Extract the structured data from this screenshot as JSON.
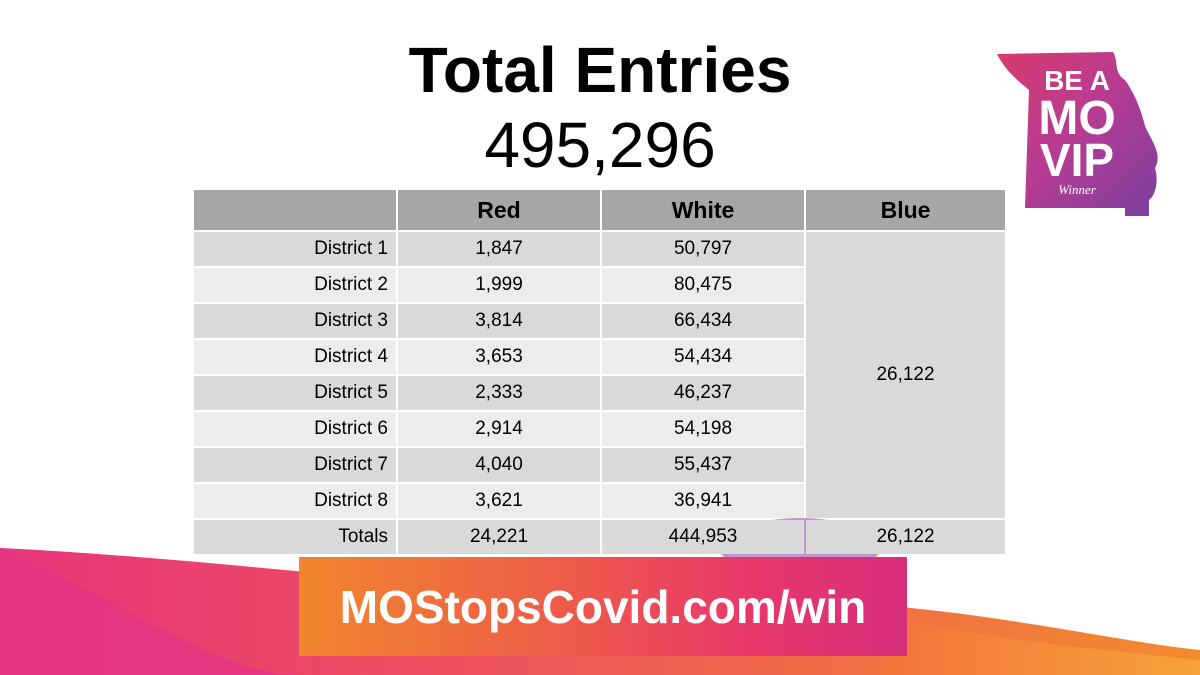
{
  "header": {
    "title": "Total Entries",
    "total": "495,296"
  },
  "logo": {
    "line1": "BE A",
    "line2": "MO",
    "line3": "VIP",
    "line4": "Winner"
  },
  "table": {
    "columns": [
      "",
      "Red",
      "White",
      "Blue"
    ],
    "rows": [
      {
        "label": "District 1",
        "red": "1,847",
        "white": "50,797"
      },
      {
        "label": "District 2",
        "red": "1,999",
        "white": "80,475"
      },
      {
        "label": "District 3",
        "red": "3,814",
        "white": "66,434"
      },
      {
        "label": "District 4",
        "red": "3,653",
        "white": "54,434"
      },
      {
        "label": "District 5",
        "red": "2,333",
        "white": "46,237"
      },
      {
        "label": "District 6",
        "red": "2,914",
        "white": "54,198"
      },
      {
        "label": "District 7",
        "red": "4,040",
        "white": "55,437"
      },
      {
        "label": "District 8",
        "red": "3,621",
        "white": "36,941"
      }
    ],
    "blue_all_districts": "26,122",
    "totals": {
      "label": "Totals",
      "red": "24,221",
      "white": "444,953",
      "blue": "26,122"
    }
  },
  "footer": {
    "url": "MOStopsCovid.com/win"
  },
  "colors": {
    "accent_orange": "#f0862d",
    "accent_pink": "#e8376c",
    "accent_purple": "#7b3fa0"
  }
}
